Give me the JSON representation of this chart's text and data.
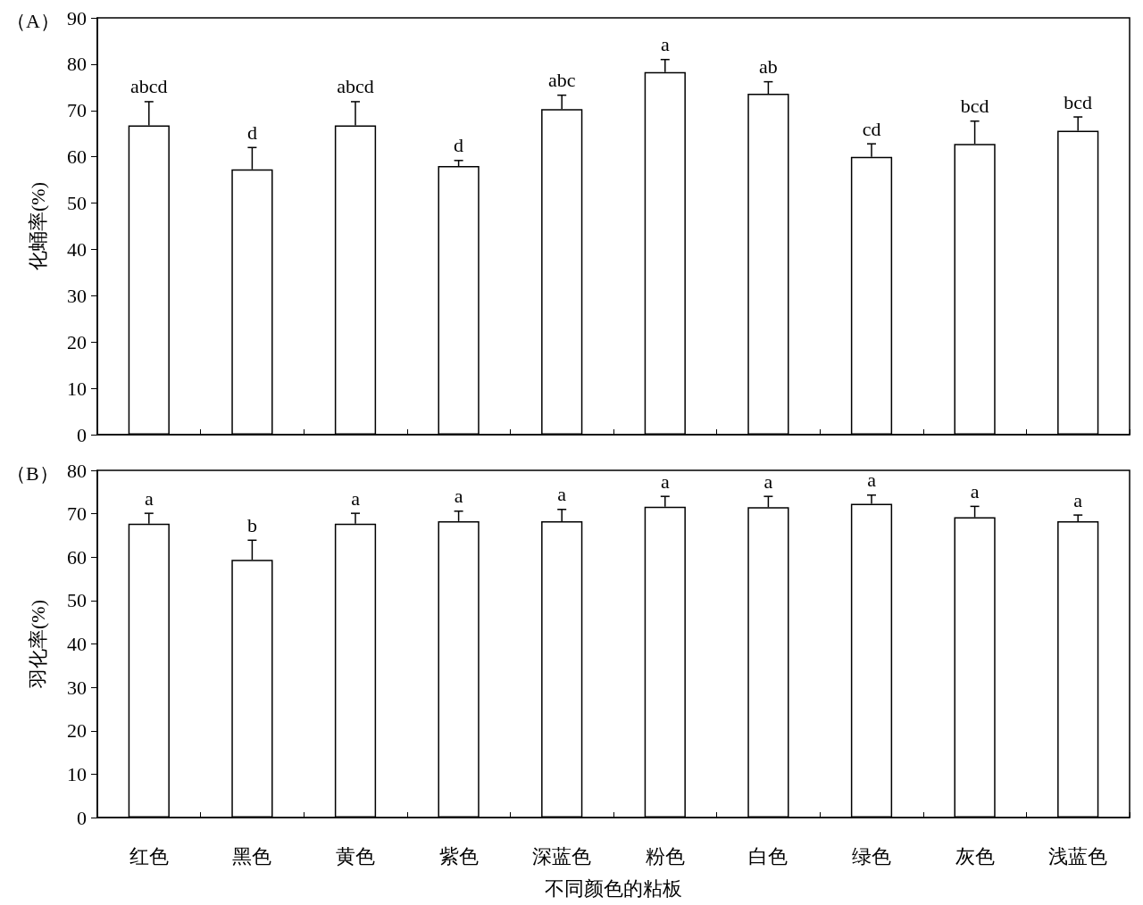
{
  "chart_data": [
    {
      "type": "bar",
      "title": "（A）",
      "ylabel": "化蛹率(%)",
      "categories": [
        "红色",
        "黑色",
        "黄色",
        "紫色",
        "深蓝色",
        "粉色",
        "白色",
        "绿色",
        "灰色",
        "浅蓝色"
      ],
      "values": [
        66.8,
        57.3,
        66.8,
        58.0,
        70.3,
        78.3,
        73.6,
        60.0,
        62.8,
        65.6
      ],
      "errors": [
        [
          66.8,
          71.9
        ],
        [
          57.3,
          62.0
        ],
        [
          66.8,
          71.9
        ],
        [
          58.0,
          59.2
        ],
        [
          70.3,
          73.3
        ],
        [
          78.3,
          81.0
        ],
        [
          73.6,
          76.2
        ],
        [
          60.0,
          62.8
        ],
        [
          62.8,
          67.7
        ],
        [
          65.6,
          68.6
        ]
      ],
      "color": "#ffffff",
      "ylim": [
        0,
        90
      ],
      "yticks": [
        0,
        10,
        20,
        30,
        40,
        50,
        60,
        70,
        80,
        90
      ],
      "tick_labels": "y",
      "annotations": [
        {
          "text": "abcd",
          "x": "红色",
          "y": 71.9
        },
        {
          "text": "d",
          "x": "黑色",
          "y": 62.0
        },
        {
          "text": "abcd",
          "x": "黄色",
          "y": 71.9
        },
        {
          "text": "d",
          "x": "紫色",
          "y": 59.2
        },
        {
          "text": "abc",
          "x": "深蓝色",
          "y": 73.3
        },
        {
          "text": "a",
          "x": "粉色",
          "y": 81.0
        },
        {
          "text": "ab",
          "x": "白色",
          "y": 76.2
        },
        {
          "text": "cd",
          "x": "绿色",
          "y": 62.8
        },
        {
          "text": "bcd",
          "x": "灰色",
          "y": 67.7
        },
        {
          "text": "bcd",
          "x": "浅蓝色",
          "y": 68.6
        }
      ]
    },
    {
      "type": "bar",
      "title": "（B）",
      "ylabel": "羽化率(%)",
      "xlabel": "不同颜色的粘板",
      "categories": [
        "红色",
        "黑色",
        "黄色",
        "紫色",
        "深蓝色",
        "粉色",
        "白色",
        "绿色",
        "灰色",
        "浅蓝色"
      ],
      "values": [
        67.7,
        59.4,
        67.7,
        68.3,
        68.3,
        71.6,
        71.5,
        72.3,
        69.2,
        68.3
      ],
      "errors": [
        [
          67.7,
          70.1
        ],
        [
          59.4,
          63.9
        ],
        [
          67.7,
          70.1
        ],
        [
          68.3,
          70.6
        ],
        [
          68.3,
          71.0
        ],
        [
          71.6,
          74.0
        ],
        [
          71.5,
          74.0
        ],
        [
          72.3,
          74.3
        ],
        [
          69.2,
          71.7
        ],
        [
          68.3,
          69.7
        ]
      ],
      "color": "#ffffff",
      "ylim": [
        0,
        80
      ],
      "yticks": [
        0,
        10,
        20,
        30,
        40,
        50,
        60,
        70,
        80
      ],
      "annotations": [
        {
          "text": "a",
          "x": "红色",
          "y": 70.1
        },
        {
          "text": "b",
          "x": "黑色",
          "y": 63.9
        },
        {
          "text": "a",
          "x": "黄色",
          "y": 70.1
        },
        {
          "text": "a",
          "x": "紫色",
          "y": 70.6
        },
        {
          "text": "a",
          "x": "深蓝色",
          "y": 71.0
        },
        {
          "text": "a",
          "x": "粉色",
          "y": 74.0
        },
        {
          "text": "a",
          "x": "白色",
          "y": 74.0
        },
        {
          "text": "a",
          "x": "绿色",
          "y": 74.3
        },
        {
          "text": "a",
          "x": "灰色",
          "y": 71.7
        },
        {
          "text": "a",
          "x": "浅蓝色",
          "y": 69.7
        }
      ]
    }
  ]
}
